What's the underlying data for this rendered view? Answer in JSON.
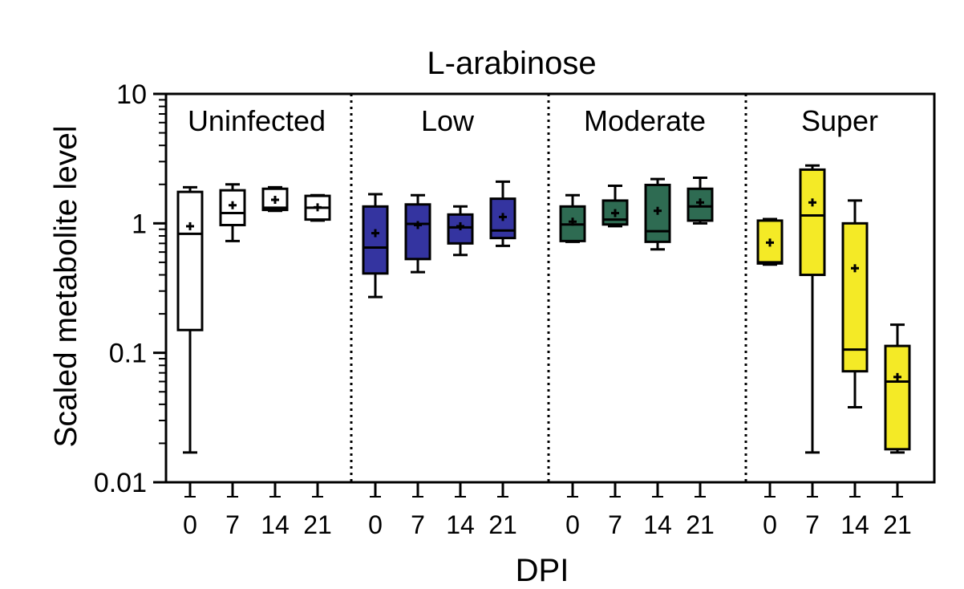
{
  "chart_data": {
    "type": "box",
    "title": "L-arabinose",
    "xlabel": "DPI",
    "ylabel": "Scaled metabolite level",
    "yscale": "log",
    "ylim": [
      0.01,
      10
    ],
    "yticks": [
      "0.01",
      "0.1",
      "1",
      "10"
    ],
    "grid": false,
    "legend": "none",
    "categories": [
      "0",
      "7",
      "14",
      "21"
    ],
    "groups": [
      {
        "name": "Uninfected",
        "color": "#ffffff",
        "boxes": [
          {
            "x": "0",
            "min": 0.017,
            "q1": 0.15,
            "median": 0.83,
            "q3": 1.75,
            "max": 1.9,
            "mean": 0.95
          },
          {
            "x": "7",
            "min": 0.73,
            "q1": 0.97,
            "median": 1.2,
            "q3": 1.8,
            "max": 2.0,
            "mean": 1.38
          },
          {
            "x": "14",
            "min": 1.25,
            "q1": 1.27,
            "median": 1.32,
            "q3": 1.85,
            "max": 1.9,
            "mean": 1.52
          },
          {
            "x": "21",
            "min": 1.05,
            "q1": 1.07,
            "median": 1.32,
            "q3": 1.63,
            "max": 1.65,
            "mean": 1.33
          }
        ]
      },
      {
        "name": "Low",
        "color": "#3434a0",
        "boxes": [
          {
            "x": "0",
            "min": 0.27,
            "q1": 0.41,
            "median": 0.65,
            "q3": 1.35,
            "max": 1.68,
            "mean": 0.84
          },
          {
            "x": "7",
            "min": 0.42,
            "q1": 0.53,
            "median": 0.99,
            "q3": 1.4,
            "max": 1.65,
            "mean": 0.97
          },
          {
            "x": "14",
            "min": 0.57,
            "q1": 0.7,
            "median": 0.93,
            "q3": 1.17,
            "max": 1.35,
            "mean": 0.95
          },
          {
            "x": "21",
            "min": 0.67,
            "q1": 0.77,
            "median": 0.88,
            "q3": 1.55,
            "max": 2.1,
            "mean": 1.12
          }
        ]
      },
      {
        "name": "Moderate",
        "color": "#2e6b52",
        "boxes": [
          {
            "x": "0",
            "min": 0.72,
            "q1": 0.73,
            "median": 0.98,
            "q3": 1.35,
            "max": 1.65,
            "mean": 1.03
          },
          {
            "x": "7",
            "min": 0.95,
            "q1": 0.98,
            "median": 1.07,
            "q3": 1.5,
            "max": 1.95,
            "mean": 1.2
          },
          {
            "x": "14",
            "min": 0.63,
            "q1": 0.72,
            "median": 0.87,
            "q3": 1.98,
            "max": 2.2,
            "mean": 1.25
          },
          {
            "x": "21",
            "min": 1.0,
            "q1": 1.05,
            "median": 1.35,
            "q3": 1.85,
            "max": 2.25,
            "mean": 1.45
          }
        ]
      },
      {
        "name": "Super",
        "color": "#f4ea26",
        "boxes": [
          {
            "x": "0",
            "min": 0.48,
            "q1": 0.49,
            "median": 0.5,
            "q3": 1.05,
            "max": 1.08,
            "mean": 0.71
          },
          {
            "x": "7",
            "min": 0.017,
            "q1": 0.4,
            "median": 1.15,
            "q3": 2.6,
            "max": 2.8,
            "mean": 1.45
          },
          {
            "x": "14",
            "min": 0.038,
            "q1": 0.072,
            "median": 0.106,
            "q3": 1.0,
            "max": 1.5,
            "mean": 0.45
          },
          {
            "x": "21",
            "min": 0.017,
            "q1": 0.018,
            "median": 0.06,
            "q3": 0.113,
            "max": 0.165,
            "mean": 0.065
          }
        ]
      }
    ]
  }
}
